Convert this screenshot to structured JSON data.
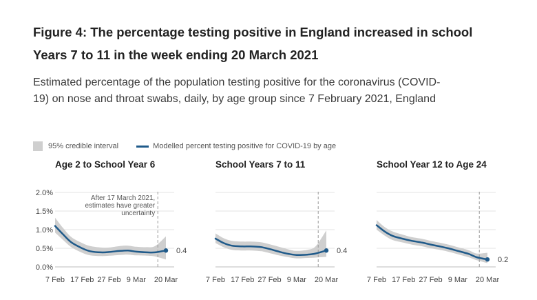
{
  "title": "Figure 4: The percentage testing positive in England increased in school Years 7 to 11 in the week ending 20 March 2021",
  "subtitle": "Estimated percentage of the population testing positive for the coronavirus (COVID-19) on nose and throat swabs, daily, by age group since 7 February 2021, England",
  "legend": {
    "ci_label": "95% credible interval",
    "line_label": "Modelled percent testing positive for COVID-19 by age"
  },
  "colors": {
    "line": "#1f5a8a",
    "band": "#cfcfcf",
    "grid": "#e3e3e3",
    "axis": "#bbbbbb"
  },
  "chart_data": [
    {
      "type": "line",
      "title": "Age 2 to School Year 6",
      "x": [
        "7 Feb",
        "10 Feb",
        "13 Feb",
        "17 Feb",
        "20 Feb",
        "24 Feb",
        "27 Feb",
        "3 Mar",
        "6 Mar",
        "9 Mar",
        "13 Mar",
        "16 Mar",
        "20 Mar"
      ],
      "values": [
        1.1,
        0.87,
        0.66,
        0.5,
        0.42,
        0.39,
        0.4,
        0.43,
        0.44,
        0.41,
        0.39,
        0.39,
        0.44
      ],
      "lower": [
        0.92,
        0.72,
        0.53,
        0.38,
        0.31,
        0.29,
        0.3,
        0.32,
        0.33,
        0.31,
        0.3,
        0.28,
        0.2
      ],
      "upper": [
        1.32,
        1.04,
        0.8,
        0.64,
        0.56,
        0.52,
        0.52,
        0.56,
        0.57,
        0.54,
        0.53,
        0.56,
        0.82
      ],
      "xticks": [
        "7 Feb",
        "17 Feb",
        "27 Feb",
        "9 Mar",
        "20 Mar"
      ],
      "yticks": [
        "0.0%",
        "0.5%",
        "1.0%",
        "1.5%",
        "2.0%"
      ],
      "ylim": [
        0,
        2
      ],
      "end_label": "0.4",
      "annotation": [
        "After 17 March 2021,",
        "estimates have greater",
        "uncertainty"
      ],
      "annotation_date": "17 Mar"
    },
    {
      "type": "line",
      "title": "School Years 7 to 11",
      "x": [
        "7 Feb",
        "10 Feb",
        "13 Feb",
        "17 Feb",
        "20 Feb",
        "24 Feb",
        "27 Feb",
        "3 Mar",
        "6 Mar",
        "9 Mar",
        "13 Mar",
        "16 Mar",
        "20 Mar"
      ],
      "values": [
        0.76,
        0.64,
        0.57,
        0.55,
        0.55,
        0.53,
        0.48,
        0.4,
        0.35,
        0.32,
        0.33,
        0.36,
        0.44
      ],
      "lower": [
        0.64,
        0.53,
        0.46,
        0.44,
        0.44,
        0.42,
        0.37,
        0.3,
        0.26,
        0.23,
        0.24,
        0.25,
        0.27
      ],
      "upper": [
        0.9,
        0.77,
        0.7,
        0.68,
        0.68,
        0.66,
        0.61,
        0.53,
        0.47,
        0.43,
        0.46,
        0.55,
        0.98
      ],
      "xticks": [
        "7 Feb",
        "17 Feb",
        "27 Feb",
        "9 Mar",
        "20 Mar"
      ],
      "ylim": [
        0,
        2
      ],
      "end_label": "0.4",
      "annotation_date": "17 Mar"
    },
    {
      "type": "line",
      "title": "School Year 12 to Age 24",
      "x": [
        "7 Feb",
        "10 Feb",
        "13 Feb",
        "17 Feb",
        "20 Feb",
        "24 Feb",
        "27 Feb",
        "3 Mar",
        "6 Mar",
        "9 Mar",
        "13 Mar",
        "16 Mar",
        "20 Mar"
      ],
      "values": [
        1.12,
        0.95,
        0.83,
        0.75,
        0.7,
        0.65,
        0.6,
        0.54,
        0.49,
        0.43,
        0.35,
        0.26,
        0.2
      ],
      "lower": [
        1.0,
        0.84,
        0.72,
        0.65,
        0.6,
        0.55,
        0.5,
        0.45,
        0.4,
        0.34,
        0.26,
        0.18,
        0.1
      ],
      "upper": [
        1.26,
        1.07,
        0.95,
        0.86,
        0.8,
        0.75,
        0.7,
        0.64,
        0.59,
        0.53,
        0.45,
        0.36,
        0.38
      ],
      "xticks": [
        "7 Feb",
        "17 Feb",
        "27 Feb",
        "9 Mar",
        "20 Mar"
      ],
      "ylim": [
        0,
        2
      ],
      "end_label": "0.2",
      "annotation_date": "17 Mar"
    }
  ]
}
